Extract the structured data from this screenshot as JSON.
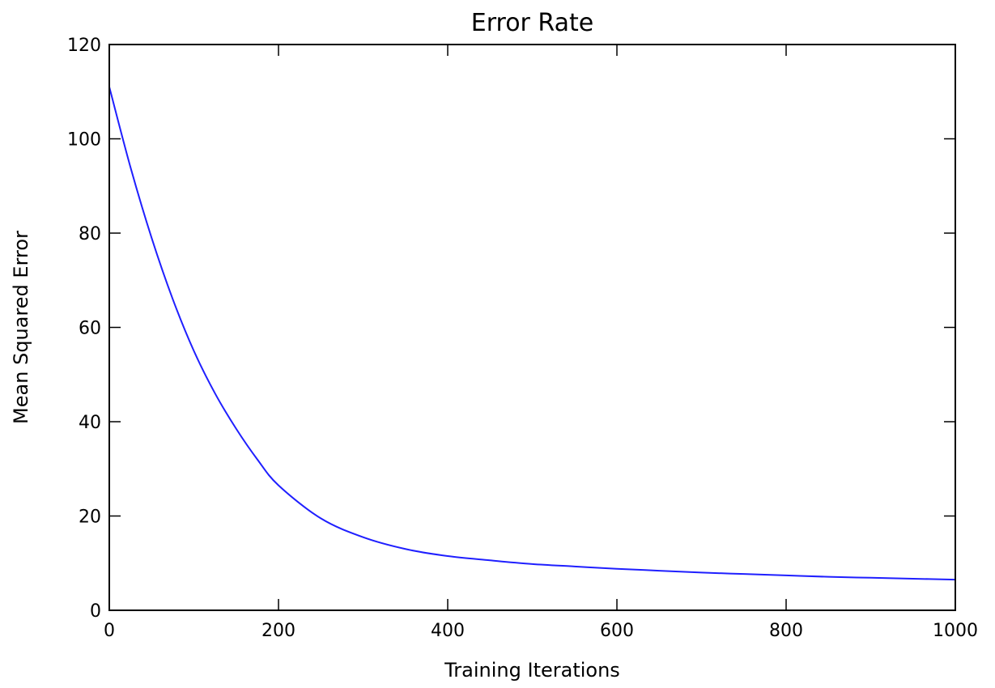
{
  "chart_data": {
    "type": "line",
    "title": "Error Rate",
    "xlabel": "Training Iterations",
    "ylabel": "Mean Squared Error",
    "xlim": [
      0,
      1000
    ],
    "ylim": [
      0,
      120
    ],
    "xticks": [
      0,
      200,
      400,
      600,
      800,
      1000
    ],
    "yticks": [
      0,
      20,
      40,
      60,
      80,
      100,
      120
    ],
    "grid": false,
    "legend": "none",
    "series": [
      {
        "color": "#1f1fff",
        "x": [
          0,
          25,
          50,
          75,
          100,
          125,
          150,
          175,
          200,
          250,
          300,
          350,
          400,
          450,
          500,
          550,
          600,
          650,
          700,
          750,
          800,
          850,
          900,
          950,
          1000
        ],
        "y": [
          111,
          94,
          79,
          66,
          55,
          46,
          38.5,
          32,
          26.5,
          19.5,
          15.5,
          13,
          11.5,
          10.6,
          9.8,
          9.3,
          8.8,
          8.4,
          8.0,
          7.7,
          7.4,
          7.1,
          6.9,
          6.7,
          6.5
        ]
      }
    ]
  }
}
